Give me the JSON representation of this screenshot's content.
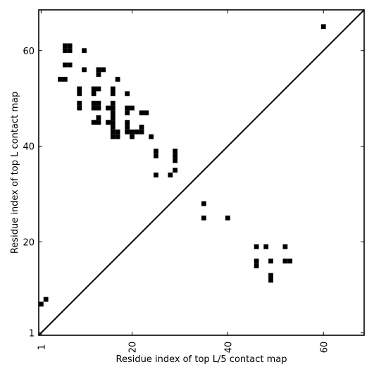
{
  "chart_data": {
    "type": "heatmap",
    "title": "",
    "xlabel": "Residue index of top L/5 contact map",
    "ylabel": "Residue index of top L contact map",
    "xlim": [
      0.5,
      68.5
    ],
    "ylim": [
      0.5,
      68.5
    ],
    "x_ticks": [
      1,
      20,
      40,
      60
    ],
    "x_tick_labels": [
      "1",
      "20",
      "40",
      "60"
    ],
    "y_ticks": [
      1,
      20,
      40,
      60
    ],
    "y_tick_labels": [
      "1",
      "20",
      "40",
      "60"
    ],
    "x_tick_rotation": 270,
    "diagonal": true,
    "grid": false,
    "colors": {
      "cell": "#000000",
      "background": "#ffffff",
      "axis": "#000000"
    },
    "upper_contacts": [
      [
        60,
        65
      ],
      [
        6,
        61
      ],
      [
        7,
        61
      ],
      [
        6,
        60
      ],
      [
        7,
        60
      ],
      [
        10,
        60
      ],
      [
        6,
        57
      ],
      [
        7,
        57
      ],
      [
        10,
        56
      ],
      [
        13,
        56
      ],
      [
        14,
        56
      ],
      [
        13,
        55
      ],
      [
        5,
        54
      ],
      [
        6,
        54
      ],
      [
        17,
        54
      ],
      [
        9,
        52
      ],
      [
        12,
        52
      ],
      [
        13,
        52
      ],
      [
        16,
        52
      ],
      [
        9,
        51
      ],
      [
        12,
        51
      ],
      [
        16,
        51
      ],
      [
        19,
        51
      ],
      [
        9,
        49
      ],
      [
        12,
        49
      ],
      [
        13,
        49
      ],
      [
        16,
        49
      ],
      [
        9,
        48
      ],
      [
        12,
        48
      ],
      [
        13,
        48
      ],
      [
        15,
        48
      ],
      [
        16,
        48
      ],
      [
        19,
        48
      ],
      [
        20,
        48
      ],
      [
        16,
        47
      ],
      [
        19,
        47
      ],
      [
        22,
        47
      ],
      [
        23,
        47
      ],
      [
        13,
        46
      ],
      [
        16,
        46
      ],
      [
        12,
        45
      ],
      [
        13,
        45
      ],
      [
        15,
        45
      ],
      [
        16,
        45
      ],
      [
        19,
        45
      ],
      [
        16,
        44
      ],
      [
        19,
        44
      ],
      [
        22,
        44
      ],
      [
        16,
        43
      ],
      [
        17,
        43
      ],
      [
        19,
        43
      ],
      [
        20,
        43
      ],
      [
        21,
        43
      ],
      [
        22,
        43
      ],
      [
        16,
        42
      ],
      [
        17,
        42
      ],
      [
        20,
        42
      ],
      [
        24,
        42
      ],
      [
        25,
        39
      ],
      [
        29,
        39
      ],
      [
        25,
        38
      ],
      [
        29,
        38
      ],
      [
        29,
        37
      ],
      [
        29,
        35
      ],
      [
        25,
        34
      ],
      [
        28,
        34
      ]
    ],
    "lower_contacts": [
      [
        35,
        28
      ],
      [
        35,
        25
      ],
      [
        40,
        25
      ],
      [
        46,
        19
      ],
      [
        48,
        19
      ],
      [
        52,
        19
      ],
      [
        46,
        16
      ],
      [
        49,
        16
      ],
      [
        52,
        16
      ],
      [
        53,
        16
      ],
      [
        46,
        15
      ],
      [
        49,
        13
      ],
      [
        49,
        12
      ],
      [
        2,
        8
      ],
      [
        1,
        7
      ]
    ]
  }
}
